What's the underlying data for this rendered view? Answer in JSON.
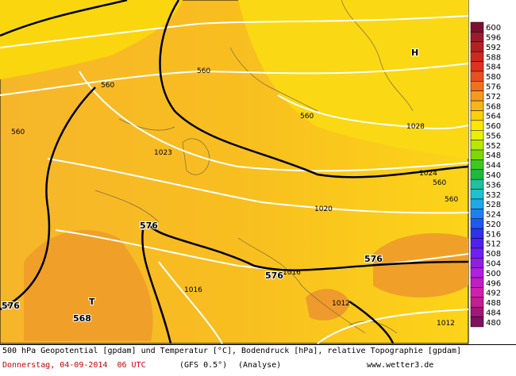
{
  "legend": [
    {
      "label": 600,
      "color": "#7a1030"
    },
    {
      "label": 596,
      "color": "#9b1b2e"
    },
    {
      "label": 592,
      "color": "#b22222"
    },
    {
      "label": 588,
      "color": "#cc2a1e"
    },
    {
      "label": 584,
      "color": "#e03020"
    },
    {
      "label": 580,
      "color": "#e85020"
    },
    {
      "label": 576,
      "color": "#f07020"
    },
    {
      "label": 572,
      "color": "#f59a20"
    },
    {
      "label": 568,
      "color": "#f8b418"
    },
    {
      "label": 564,
      "color": "#fbcf10"
    },
    {
      "label": 560,
      "color": "#ffe600"
    },
    {
      "label": 556,
      "color": "#e8f000"
    },
    {
      "label": 552,
      "color": "#b8e800"
    },
    {
      "label": 548,
      "color": "#80d800"
    },
    {
      "label": 544,
      "color": "#40c820"
    },
    {
      "label": 540,
      "color": "#20b840"
    },
    {
      "label": 536,
      "color": "#20c0a0"
    },
    {
      "label": 532,
      "color": "#20c0d0"
    },
    {
      "label": 528,
      "color": "#20a8e8"
    },
    {
      "label": 524,
      "color": "#2080f0"
    },
    {
      "label": 520,
      "color": "#2058f0"
    },
    {
      "label": 516,
      "color": "#3030f0"
    },
    {
      "label": 512,
      "color": "#5020f0"
    },
    {
      "label": 508,
      "color": "#7020f0"
    },
    {
      "label": 504,
      "color": "#9020e0"
    },
    {
      "label": 500,
      "color": "#b020e0"
    },
    {
      "label": 496,
      "color": "#c020c0"
    },
    {
      "label": 492,
      "color": "#d020b0"
    },
    {
      "label": 488,
      "color": "#c02090"
    },
    {
      "label": 484,
      "color": "#a01878"
    },
    {
      "label": 480,
      "color": "#801060"
    }
  ],
  "map_labels": [
    "560",
    "560",
    "560",
    "560",
    "560",
    "560",
    "1028",
    "1024",
    "1023",
    "1020",
    "1016",
    "1016",
    "1012",
    "1012",
    "576",
    "576",
    "576",
    "576",
    "H",
    "T",
    "568"
  ],
  "footer": {
    "line1": "500 hPa Geopotential [gpdam] und Temperatur [°C], Bodendruck [hPa], relative Topographie [gpdam]",
    "date": "Donnerstag, 04-09-2014  06 UTC",
    "model": "(GFS 0.5°)",
    "run": "(Analyse)",
    "site": "www.wetter3.de"
  }
}
